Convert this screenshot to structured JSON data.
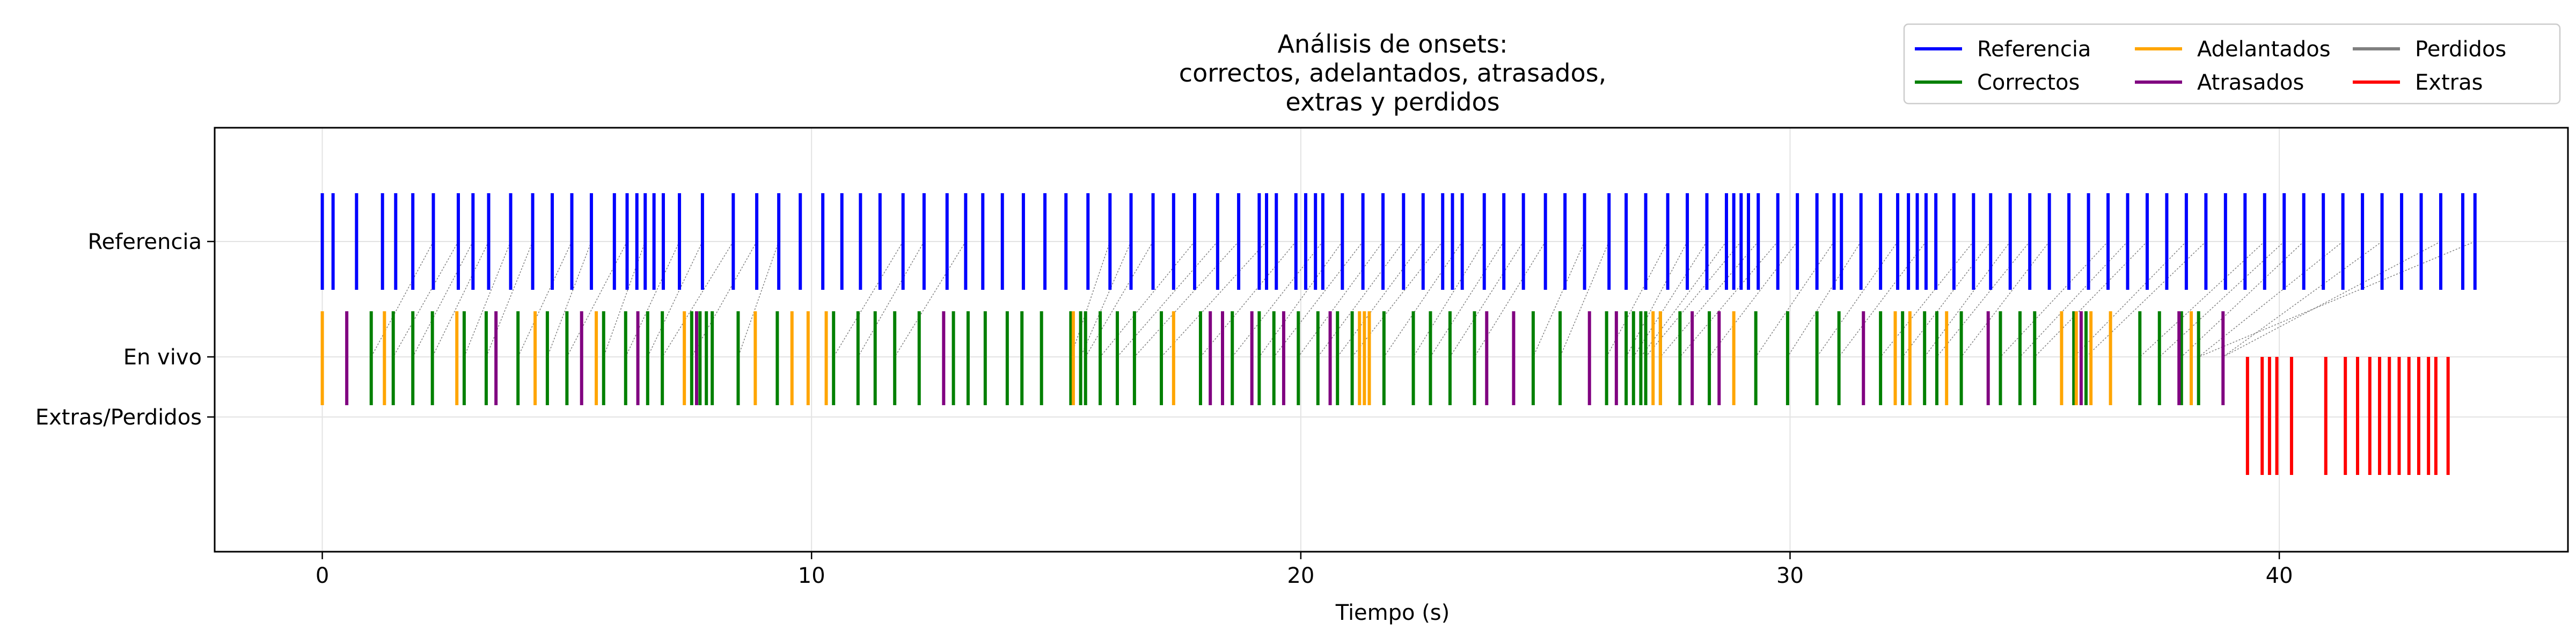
{
  "chart_data": {
    "type": "event-raster",
    "title": [
      "Análisis de onsets:",
      "correctos, adelantados, atrasados,",
      "extras y perdidos"
    ],
    "xlabel": "Tiempo (s)",
    "ylabel": "",
    "xlim": [
      -2.2,
      45.9
    ],
    "xticks": [
      0,
      10,
      20,
      30,
      40
    ],
    "ytick_labels": [
      "Referencia",
      "En vivo",
      "Extras/Perdidos"
    ],
    "grid": true,
    "legend_position": "top-right",
    "legend": [
      {
        "label": "Referencia",
        "color": "#0000ff"
      },
      {
        "label": "Correctos",
        "color": "#008000"
      },
      {
        "label": "Adelantados",
        "color": "#ffa500"
      },
      {
        "label": "Atrasados",
        "color": "#800080"
      },
      {
        "label": "Perdidos",
        "color": "#808080"
      },
      {
        "label": "Extras",
        "color": "#ff0000"
      }
    ],
    "series": [
      {
        "name": "Referencia",
        "color": "#0000ff",
        "x": [
          0.0,
          0.22,
          0.7,
          1.23,
          1.5,
          1.85,
          2.27,
          2.78,
          3.08,
          3.4,
          3.85,
          4.3,
          4.7,
          5.1,
          5.5,
          5.97,
          6.23,
          6.43,
          6.6,
          6.78,
          6.97,
          7.3,
          7.77,
          8.4,
          8.88,
          9.33,
          9.77,
          10.23,
          10.62,
          11.0,
          11.4,
          11.87,
          12.3,
          12.77,
          13.15,
          13.5,
          13.9,
          14.33,
          14.77,
          15.2,
          15.65,
          16.1,
          16.53,
          16.98,
          17.4,
          17.83,
          18.3,
          18.73,
          19.15,
          19.3,
          19.5,
          19.9,
          20.1,
          20.3,
          20.45,
          20.85,
          21.27,
          21.68,
          22.1,
          22.5,
          22.9,
          23.1,
          23.3,
          23.75,
          24.15,
          24.55,
          25.0,
          25.4,
          25.8,
          26.3,
          26.65,
          27.05,
          27.5,
          27.9,
          28.3,
          28.7,
          28.85,
          29.0,
          29.15,
          29.35,
          29.75,
          30.15,
          30.55,
          30.9,
          31.05,
          31.45,
          31.85,
          32.2,
          32.42,
          32.6,
          32.78,
          32.98,
          33.35,
          33.75,
          34.1,
          34.5,
          34.9,
          35.3,
          35.7,
          36.1,
          36.5,
          36.9,
          37.3,
          37.7,
          38.1,
          38.5,
          38.9,
          39.3,
          39.7,
          40.1,
          40.5,
          40.9,
          41.3,
          41.7,
          42.1,
          42.5,
          42.9,
          43.3,
          43.75,
          44.0
        ]
      },
      {
        "name": "Correctos",
        "color": "#008000",
        "x": [
          1.0,
          1.45,
          1.85,
          2.25,
          2.9,
          3.35,
          4.0,
          4.6,
          5.0,
          5.75,
          6.2,
          6.65,
          6.95,
          7.55,
          7.72,
          7.85,
          7.97,
          8.5,
          9.3,
          10.45,
          10.95,
          11.3,
          11.7,
          12.2,
          12.9,
          13.2,
          13.55,
          14.0,
          14.3,
          14.7,
          15.3,
          15.5,
          15.6,
          15.9,
          16.25,
          16.6,
          17.15,
          17.95,
          18.6,
          19.15,
          19.45,
          19.95,
          20.35,
          20.75,
          21.05,
          21.7,
          22.3,
          22.65,
          23.05,
          23.55,
          24.75,
          25.3,
          26.25,
          26.65,
          26.8,
          26.95,
          27.05,
          27.35,
          27.75,
          28.35,
          29.3,
          29.95,
          30.55,
          31.0,
          31.85,
          32.3,
          32.75,
          33.0,
          33.5,
          34.3,
          34.7,
          35.0,
          35.8,
          36.05,
          37.15,
          37.55,
          38.0,
          38.35
        ]
      },
      {
        "name": "Adelantados",
        "color": "#ffa500",
        "x": [
          0.0,
          1.27,
          2.75,
          4.35,
          5.6,
          7.4,
          8.85,
          9.6,
          9.93,
          10.3,
          15.35,
          17.4,
          21.2,
          21.3,
          21.4,
          27.2,
          27.35,
          28.85,
          32.15,
          32.45,
          33.2,
          35.55,
          35.85,
          36.15,
          36.55,
          38.2
        ]
      },
      {
        "name": "Atrasados",
        "color": "#800080",
        "x": [
          0.5,
          3.55,
          5.3,
          6.45,
          7.65,
          12.7,
          18.15,
          18.4,
          19.0,
          19.65,
          20.6,
          23.8,
          24.35,
          25.9,
          26.45,
          28.0,
          28.55,
          31.5,
          34.05,
          35.95,
          37.95,
          38.85
        ]
      },
      {
        "name": "Extras",
        "color": "#ff0000",
        "x": [
          39.35,
          39.65,
          39.8,
          39.95,
          40.25,
          40.95,
          41.35,
          41.6,
          41.85,
          42.05,
          42.25,
          42.45,
          42.65,
          42.85,
          43.05,
          43.2,
          43.45
        ]
      }
    ],
    "connections": [
      [
        2.27,
        1.0
      ],
      [
        2.78,
        1.45
      ],
      [
        3.08,
        1.85
      ],
      [
        3.4,
        2.25
      ],
      [
        3.85,
        2.9
      ],
      [
        4.3,
        3.35
      ],
      [
        5.1,
        4.0
      ],
      [
        5.5,
        4.6
      ],
      [
        6.23,
        5.0
      ],
      [
        6.6,
        5.75
      ],
      [
        7.3,
        6.2
      ],
      [
        7.77,
        6.65
      ],
      [
        8.4,
        6.95
      ],
      [
        8.88,
        7.55
      ],
      [
        9.33,
        8.5
      ],
      [
        11.87,
        10.45
      ],
      [
        12.3,
        10.95
      ],
      [
        13.15,
        11.7
      ],
      [
        16.1,
        15.3
      ],
      [
        16.53,
        15.5
      ],
      [
        16.98,
        15.6
      ],
      [
        17.83,
        15.9
      ],
      [
        18.3,
        16.25
      ],
      [
        18.73,
        16.6
      ],
      [
        19.3,
        17.15
      ],
      [
        19.9,
        17.95
      ],
      [
        20.45,
        18.6
      ],
      [
        20.85,
        19.15
      ],
      [
        21.27,
        19.45
      ],
      [
        21.68,
        19.95
      ],
      [
        22.1,
        20.35
      ],
      [
        22.5,
        20.75
      ],
      [
        22.9,
        21.05
      ],
      [
        23.3,
        21.7
      ],
      [
        23.75,
        22.3
      ],
      [
        24.15,
        22.65
      ],
      [
        24.55,
        23.05
      ],
      [
        25.0,
        23.55
      ],
      [
        25.8,
        24.75
      ],
      [
        26.3,
        25.3
      ],
      [
        27.5,
        26.25
      ],
      [
        27.9,
        26.65
      ],
      [
        28.3,
        26.8
      ],
      [
        28.7,
        26.95
      ],
      [
        29.0,
        27.05
      ],
      [
        29.35,
        27.35
      ],
      [
        29.75,
        27.75
      ],
      [
        30.15,
        28.35
      ],
      [
        30.9,
        29.3
      ],
      [
        31.45,
        29.95
      ],
      [
        32.2,
        30.55
      ],
      [
        32.78,
        31.0
      ],
      [
        33.75,
        31.85
      ],
      [
        34.1,
        32.3
      ],
      [
        34.5,
        32.75
      ],
      [
        34.9,
        33.0
      ],
      [
        35.3,
        33.5
      ],
      [
        36.5,
        34.3
      ],
      [
        36.9,
        34.7
      ],
      [
        37.3,
        35.0
      ],
      [
        38.1,
        35.8
      ],
      [
        38.5,
        36.05
      ],
      [
        39.7,
        37.15
      ],
      [
        40.1,
        37.55
      ],
      [
        40.5,
        38.0
      ],
      [
        41.3,
        38.35
      ],
      [
        42.1,
        38.85
      ],
      [
        43.3,
        38.85
      ],
      [
        44.0,
        38.35
      ]
    ]
  }
}
